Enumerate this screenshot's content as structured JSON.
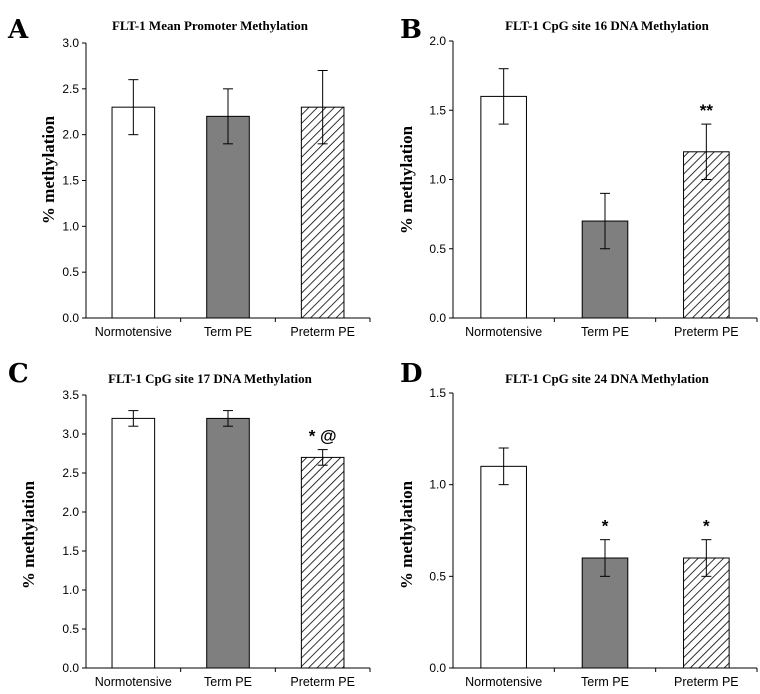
{
  "chart_data": [
    {
      "panel": "A",
      "type": "bar",
      "title": "FLT-1 Mean Promoter Methylation",
      "ylabel": "% methylation",
      "categories": [
        "Normotensive",
        "Term PE",
        "Preterm PE"
      ],
      "values": [
        2.3,
        2.2,
        2.3
      ],
      "errors": [
        0.3,
        0.3,
        0.4
      ],
      "significance": [
        "",
        "",
        ""
      ],
      "ylim": [
        0,
        3.0
      ],
      "yticks": [
        "0.0",
        "0.5",
        "1.0",
        "1.5",
        "2.0",
        "2.5",
        "3.0"
      ],
      "grid": false,
      "bar_styles": [
        "white",
        "gray",
        "hatched"
      ],
      "colors": {
        "gray": "#7f7f7f",
        "edge": "#000000"
      }
    },
    {
      "panel": "B",
      "type": "bar",
      "title": "FLT-1 CpG site 16 DNA Methylation",
      "ylabel": "% methylation",
      "categories": [
        "Normotensive",
        "Term PE",
        "Preterm PE"
      ],
      "values": [
        1.6,
        0.7,
        1.2
      ],
      "errors": [
        0.2,
        0.2,
        0.2
      ],
      "significance": [
        "",
        "",
        "**"
      ],
      "ylim": [
        0,
        2.0
      ],
      "yticks": [
        "0.0",
        "0.5",
        "1.0",
        "1.5",
        "2.0"
      ],
      "grid": false,
      "bar_styles": [
        "white",
        "gray",
        "hatched"
      ],
      "colors": {
        "gray": "#7f7f7f",
        "edge": "#000000"
      }
    },
    {
      "panel": "C",
      "type": "bar",
      "title": "FLT-1 CpG site 17 DNA Methylation",
      "ylabel": "% methylation",
      "categories": [
        "Normotensive",
        "Term PE",
        "Preterm PE"
      ],
      "values": [
        3.2,
        3.2,
        2.7
      ],
      "errors": [
        0.1,
        0.1,
        0.1
      ],
      "significance": [
        "",
        "",
        "* @"
      ],
      "ylim": [
        0,
        3.5
      ],
      "yticks": [
        "0.0",
        "0.5",
        "1.0",
        "1.5",
        "2.0",
        "2.5",
        "3.0",
        "3.5"
      ],
      "grid": false,
      "bar_styles": [
        "white",
        "gray",
        "hatched"
      ],
      "colors": {
        "gray": "#7f7f7f",
        "edge": "#000000"
      }
    },
    {
      "panel": "D",
      "type": "bar",
      "title": "FLT-1 CpG site 24 DNA Methylation",
      "ylabel": "% methylation",
      "categories": [
        "Normotensive",
        "Term PE",
        "Preterm PE"
      ],
      "values": [
        1.1,
        0.6,
        0.6
      ],
      "errors": [
        0.1,
        0.1,
        0.1
      ],
      "significance": [
        "",
        "*",
        "*"
      ],
      "ylim": [
        0,
        1.5
      ],
      "yticks": [
        "0.0",
        "0.5",
        "1.0",
        "1.5"
      ],
      "grid": false,
      "bar_styles": [
        "white",
        "gray",
        "hatched"
      ],
      "colors": {
        "gray": "#7f7f7f",
        "edge": "#000000"
      }
    }
  ]
}
